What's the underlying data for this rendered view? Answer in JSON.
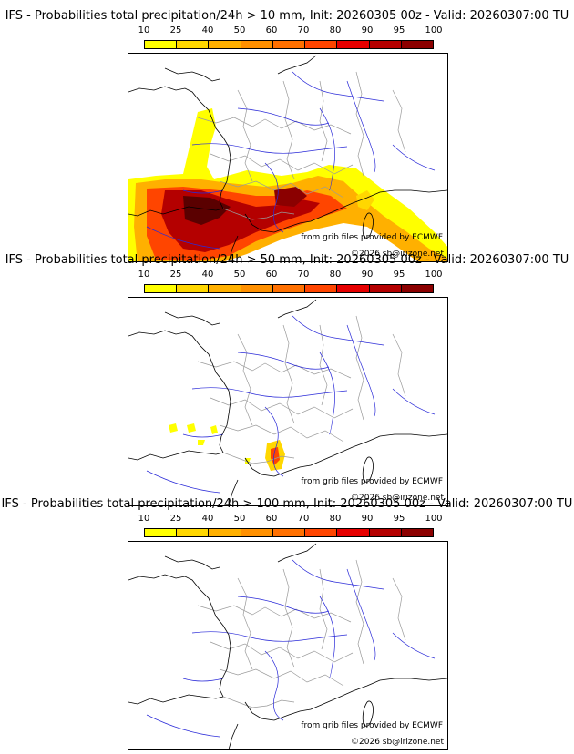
{
  "legend": {
    "ticks": [
      "10",
      "25",
      "40",
      "50",
      "60",
      "70",
      "80",
      "90",
      "95",
      "100"
    ],
    "colors": [
      "#ffff00",
      "#ffd700",
      "#ffb000",
      "#ff9000",
      "#ff7000",
      "#ff4500",
      "#e60000",
      "#b40000",
      "#8b0000",
      "#5a0000"
    ]
  },
  "panels": [
    {
      "title": "IFS - Probabilities total precipitation/24h > 10 mm, Init: 20260305 00z - Valid: 20260307:00 TU",
      "credit_source": "from grib files provided by ECMWF",
      "credit_copy": "©2026 sb@irizone.net",
      "precip_level": "high"
    },
    {
      "title": "IFS - Probabilities total precipitation/24h > 50 mm, Init: 20260305 00z - Valid: 20260307:00 TU",
      "credit_source": "from grib files provided by ECMWF",
      "credit_copy": "©2026 sb@irizone.net",
      "precip_level": "medium"
    },
    {
      "title": "IFS - Probabilities total precipitation/24h > 100 mm, Init: 20260305 00z - Valid: 20260307:00 TU",
      "credit_source": "from grib files provided by ECMWF",
      "credit_copy": "©2026 sb@irizone.net",
      "precip_level": "none"
    }
  ],
  "map_colors": {
    "coast": "#000000",
    "rivers": "#2a2ad8",
    "borders": "#9a9a9a"
  }
}
